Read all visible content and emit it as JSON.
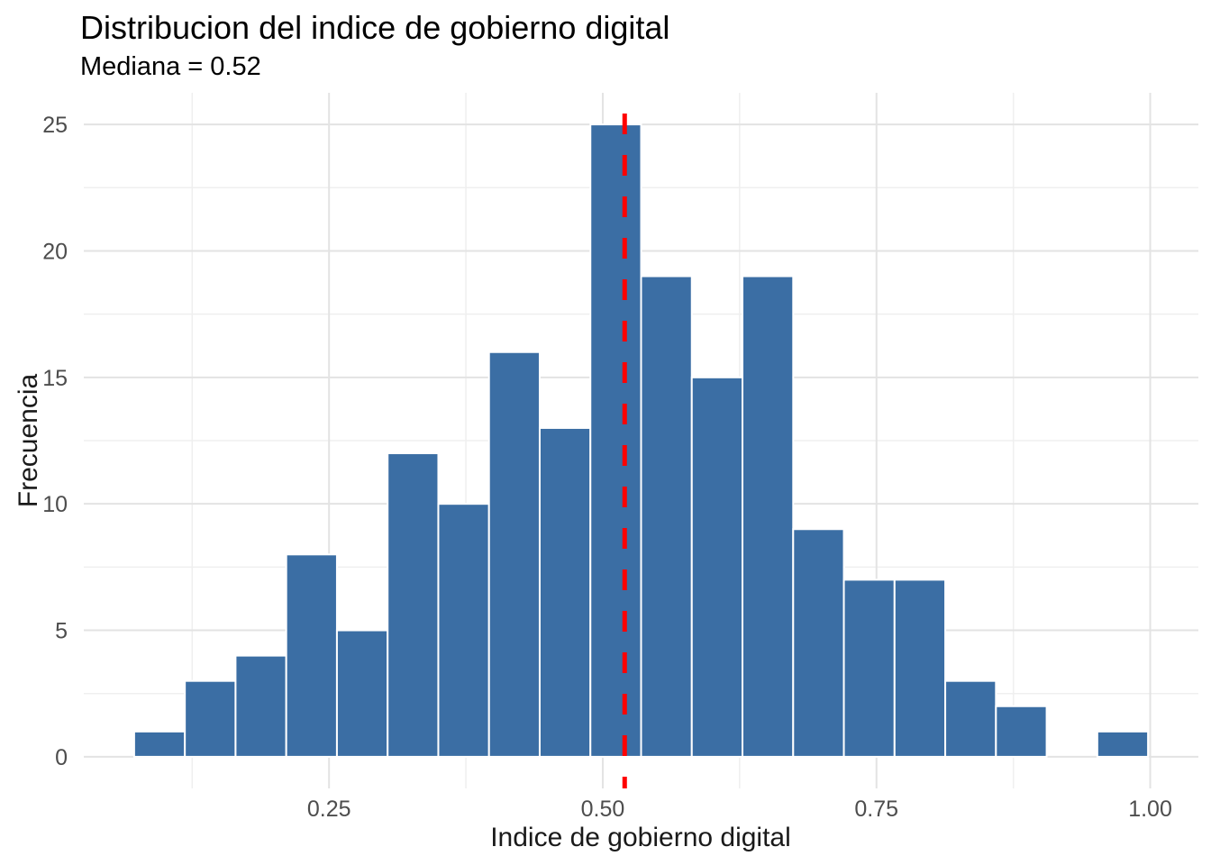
{
  "chart_data": {
    "type": "bar",
    "subtype": "histogram",
    "title": "Distribucion del indice de gobierno digital",
    "subtitle": "Mediana = 0.52",
    "xlabel": "Indice de gobierno digital",
    "ylabel": "Frecuencia",
    "bin_start": 0.072,
    "bin_width": 0.0463,
    "counts": [
      1,
      3,
      4,
      8,
      5,
      12,
      10,
      16,
      13,
      25,
      19,
      15,
      19,
      9,
      7,
      7,
      3,
      2,
      0,
      1
    ],
    "median": 0.52,
    "median_line": {
      "x": 0.52,
      "style": "dashed",
      "color": "#FF0000"
    },
    "x_ticks": {
      "values": [
        0.25,
        0.5,
        0.75,
        1.0
      ],
      "labels": [
        "0.25",
        "0.50",
        "0.75",
        "1.00"
      ]
    },
    "x_minor_ticks": [
      0.125,
      0.375,
      0.625,
      0.875
    ],
    "y_ticks": {
      "values": [
        0,
        5,
        10,
        15,
        20,
        25
      ],
      "labels": [
        "0",
        "5",
        "10",
        "15",
        "20",
        "25"
      ]
    },
    "y_minor_ticks": [
      2.5,
      7.5,
      12.5,
      17.5,
      22.5
    ],
    "xlim": [
      0.026,
      1.044
    ],
    "ylim": [
      -1.25,
      26.25
    ],
    "grid": true,
    "legend": "none",
    "colors": {
      "background": "#FFFFFF",
      "bar_fill": "#3B6EA4",
      "bar_stroke": "#FFFFFF",
      "median_line": "#FF0000",
      "grid_major": "#E3E3E3",
      "grid_minor": "#EFEFEF",
      "tick_label_text": "#4D4D4D",
      "axis_title_text": "#1A1A1A",
      "title_text": "#000000"
    }
  }
}
